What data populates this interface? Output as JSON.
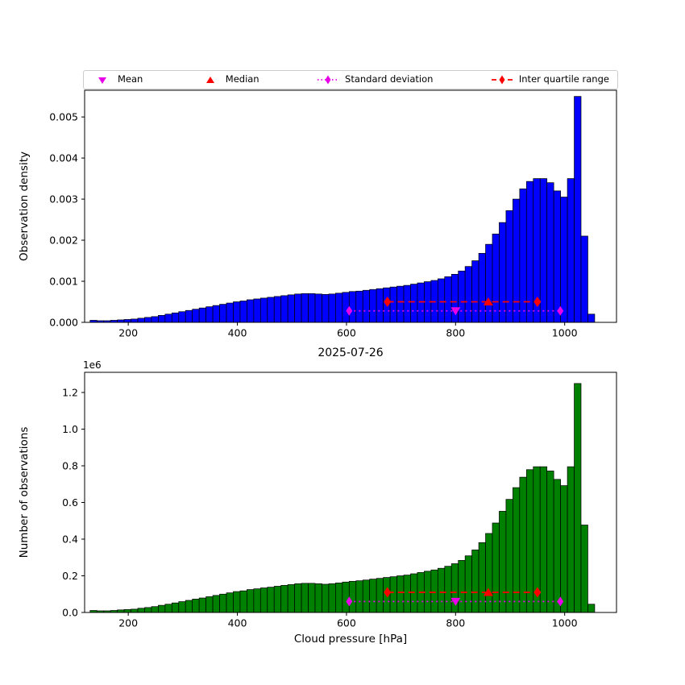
{
  "title": "2025-07-26",
  "legend": {
    "items": [
      {
        "label": "Mean",
        "marker": "triangle-down",
        "line": "none",
        "color": "#e800e8"
      },
      {
        "label": "Median",
        "marker": "triangle-up",
        "line": "none",
        "color": "#ff0000"
      },
      {
        "label": "Standard deviation",
        "marker": "diamond",
        "line": "dotted",
        "color": "#e800e8"
      },
      {
        "label": "Inter quartile range",
        "marker": "diamond",
        "line": "dashed",
        "color": "#ff0000"
      }
    ]
  },
  "chart_data": [
    {
      "type": "bar",
      "name": "density-histogram",
      "title": "",
      "xlabel": "",
      "ylabel": "Observation density",
      "bar_color": "#0000ff",
      "bin_start": 130,
      "bin_width": 12.5,
      "values": [
        5e-05,
        4e-05,
        4e-05,
        5e-05,
        6e-05,
        7e-05,
        8e-05,
        0.0001,
        0.00012,
        0.00014,
        0.00017,
        0.0002,
        0.00023,
        0.00026,
        0.00029,
        0.00032,
        0.00035,
        0.00038,
        0.00041,
        0.00044,
        0.00047,
        0.0005,
        0.00052,
        0.00055,
        0.00057,
        0.00059,
        0.00061,
        0.00063,
        0.00065,
        0.00067,
        0.00069,
        0.0007,
        0.0007,
        0.00069,
        0.00068,
        0.00069,
        0.00071,
        0.00073,
        0.00075,
        0.00076,
        0.00078,
        0.0008,
        0.00082,
        0.00084,
        0.00086,
        0.00088,
        0.0009,
        0.00093,
        0.00096,
        0.00099,
        0.00102,
        0.00106,
        0.00111,
        0.00117,
        0.00125,
        0.00136,
        0.0015,
        0.00168,
        0.0019,
        0.00215,
        0.00243,
        0.00272,
        0.003,
        0.00325,
        0.00343,
        0.0035,
        0.0035,
        0.0034,
        0.0032,
        0.00305,
        0.0035,
        0.0055,
        0.0021,
        0.0002
      ],
      "xlim": [
        120,
        1095
      ],
      "ylim": [
        0,
        0.00565
      ],
      "xticks": [
        200,
        400,
        600,
        800,
        1000
      ],
      "yticks": [
        0,
        0.001,
        0.002,
        0.003,
        0.004,
        0.005
      ],
      "ytick_labels": [
        "0.000",
        "0.001",
        "0.002",
        "0.003",
        "0.004",
        "0.005"
      ],
      "markers": {
        "mean": {
          "x": 800,
          "y": 0.00028
        },
        "median": {
          "x": 860,
          "y": 0.0005
        },
        "std": {
          "x1": 605,
          "x2": 992,
          "y": 0.00028
        },
        "iqr": {
          "x1": 675,
          "x2": 950,
          "y": 0.0005
        }
      }
    },
    {
      "type": "bar",
      "name": "counts-histogram",
      "title": "2025-07-26",
      "xlabel": "Cloud pressure [hPa]",
      "ylabel": "Number of observations",
      "offset_text": "1e6",
      "unit": "1e6",
      "bar_color": "#008000",
      "bin_start": 130,
      "bin_width": 12.5,
      "values": [
        0.011,
        0.009,
        0.009,
        0.011,
        0.014,
        0.016,
        0.018,
        0.023,
        0.027,
        0.032,
        0.039,
        0.045,
        0.052,
        0.059,
        0.066,
        0.073,
        0.079,
        0.086,
        0.093,
        0.1,
        0.107,
        0.114,
        0.118,
        0.125,
        0.129,
        0.134,
        0.138,
        0.143,
        0.148,
        0.152,
        0.157,
        0.159,
        0.159,
        0.157,
        0.154,
        0.157,
        0.161,
        0.166,
        0.17,
        0.173,
        0.177,
        0.182,
        0.186,
        0.191,
        0.195,
        0.2,
        0.204,
        0.211,
        0.218,
        0.225,
        0.232,
        0.241,
        0.252,
        0.266,
        0.284,
        0.309,
        0.341,
        0.381,
        0.431,
        0.488,
        0.552,
        0.617,
        0.681,
        0.738,
        0.779,
        0.795,
        0.795,
        0.772,
        0.726,
        0.692,
        0.795,
        1.249,
        0.477,
        0.045
      ],
      "xlim": [
        120,
        1095
      ],
      "ylim": [
        0,
        1.31
      ],
      "xticks": [
        200,
        400,
        600,
        800,
        1000
      ],
      "yticks": [
        0,
        0.2,
        0.4,
        0.6,
        0.8,
        1.0,
        1.2
      ],
      "ytick_labels": [
        "0.0",
        "0.2",
        "0.4",
        "0.6",
        "0.8",
        "1.0",
        "1.2"
      ],
      "markers": {
        "mean": {
          "x": 800,
          "y": 0.06
        },
        "median": {
          "x": 860,
          "y": 0.11
        },
        "std": {
          "x1": 605,
          "x2": 992,
          "y": 0.06
        },
        "iqr": {
          "x1": 675,
          "x2": 950,
          "y": 0.11
        }
      }
    }
  ]
}
